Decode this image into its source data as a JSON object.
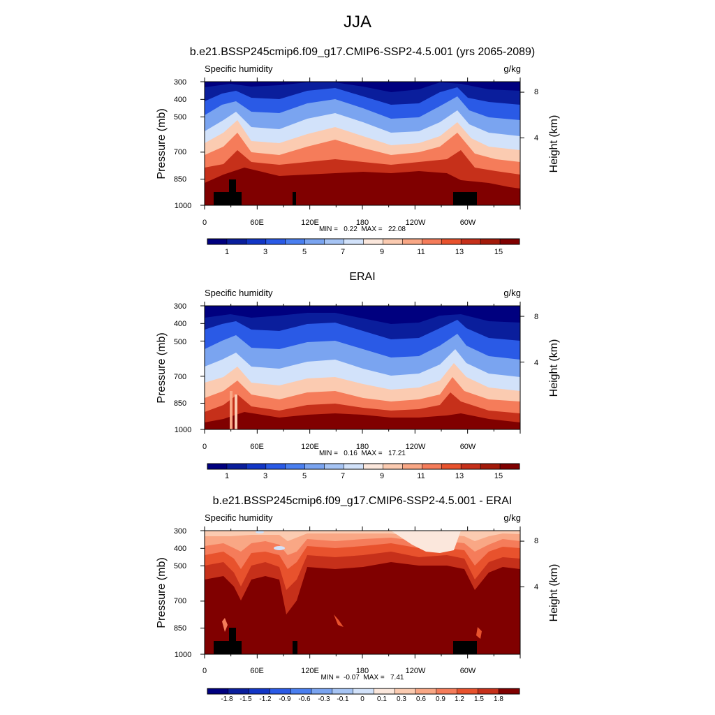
{
  "title": "JJA",
  "colors": {
    "levels_abs": [
      "#00007f",
      "#0a1e9c",
      "#1236c6",
      "#2a5ae6",
      "#4a7ff0",
      "#7aa4f0",
      "#a6c4f4",
      "#d2e2fa",
      "#fbe7dc",
      "#fbcbb1",
      "#f9a785",
      "#f57c5a",
      "#e8522d",
      "#c6301a",
      "#a31a0a",
      "#800000"
    ],
    "levels_diff": [
      "#00007f",
      "#0a1e9c",
      "#1236c6",
      "#2a5ae6",
      "#4a7ff0",
      "#7aa4f0",
      "#a6c4f4",
      "#d2e2fa",
      "#fbe7dc",
      "#fbcbb1",
      "#f9a785",
      "#f57c5a",
      "#e8522d",
      "#c6301a",
      "#800000"
    ],
    "land_mask": "#000000"
  },
  "chart_data": [
    {
      "type": "heatmap",
      "title": "b.e21.BSSP245cmip6.f09_g17.CMIP6-SSP2-4.5.001 (yrs 2065-2089)",
      "left_label": "Specific humidity",
      "right_label": "g/kg",
      "ylabel": "Pressure (mb)",
      "y2label": "Height (km)",
      "y_ticks": [
        "300",
        "400",
        "500",
        "700",
        "850",
        "1000"
      ],
      "y2_ticks": [
        "8",
        "4"
      ],
      "x_ticks": [
        "0",
        "60E",
        "120E",
        "180",
        "120W",
        "60W"
      ],
      "stats": "MIN =   0.22  MAX =   22.08",
      "colorbar_labels": [
        "1",
        "3",
        "5",
        "7",
        "9",
        "11",
        "13",
        "15"
      ],
      "min": 0.22,
      "max": 22.08
    },
    {
      "type": "heatmap",
      "title": "ERAI",
      "left_label": "Specific humidity",
      "right_label": "g/kg",
      "ylabel": "Pressure (mb)",
      "y2label": "Height (km)",
      "y_ticks": [
        "300",
        "400",
        "500",
        "700",
        "850",
        "1000"
      ],
      "y2_ticks": [
        "8",
        "4"
      ],
      "x_ticks": [
        "0",
        "60E",
        "120E",
        "180",
        "120W",
        "60W"
      ],
      "stats": "MIN =   0.16  MAX =   17.21",
      "colorbar_labels": [
        "1",
        "3",
        "5",
        "7",
        "9",
        "11",
        "13",
        "15"
      ],
      "min": 0.16,
      "max": 17.21
    },
    {
      "type": "heatmap",
      "title": "b.e21.BSSP245cmip6.f09_g17.CMIP6-SSP2-4.5.001 - ERAI",
      "left_label": "Specific humidity",
      "right_label": "g/kg",
      "ylabel": "Pressure (mb)",
      "y2label": "Height (km)",
      "y_ticks": [
        "300",
        "400",
        "500",
        "700",
        "850",
        "1000"
      ],
      "y2_ticks": [
        "8",
        "4"
      ],
      "x_ticks": [
        "0",
        "60E",
        "120E",
        "180",
        "120W",
        "60W"
      ],
      "stats": "MIN =  -0.07  MAX =   7.41",
      "colorbar_labels": [
        "-1.8",
        "-1.5",
        "-1.2",
        "-0.9",
        "-0.6",
        "-0.3",
        "-0.1",
        "0",
        "0.1",
        "0.3",
        "0.6",
        "0.9",
        "1.2",
        "1.5",
        "1.8"
      ],
      "min": -0.07,
      "max": 7.41
    }
  ]
}
